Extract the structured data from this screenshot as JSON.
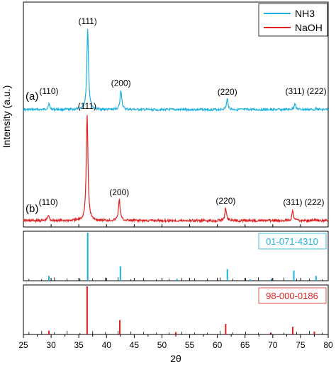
{
  "chart_data": {
    "type": "line",
    "xlabel": "2θ",
    "ylabel": "Intensity (a.u.)",
    "xlim": [
      25,
      80
    ],
    "x_ticks": [
      25,
      30,
      35,
      40,
      45,
      50,
      55,
      60,
      65,
      70,
      75,
      80
    ],
    "legend": {
      "placement": "top-right",
      "entries": [
        {
          "name": "NH3",
          "color": "#1ab0e0"
        },
        {
          "name": "NaOH",
          "color": "#e02020"
        }
      ]
    },
    "series": [
      {
        "name": "NH3",
        "label": "(a)",
        "color": "#1ab0e0",
        "baseline": 0.15,
        "peaks": [
          {
            "hkl": "(110)",
            "x": 29.6,
            "intensity": 0.07
          },
          {
            "hkl": "(111)",
            "x": 36.6,
            "intensity": 1.0
          },
          {
            "hkl": "(200)",
            "x": 42.6,
            "intensity": 0.24
          },
          {
            "hkl": "(220)",
            "x": 61.8,
            "intensity": 0.13
          },
          {
            "hkl": "(311)",
            "x": 74.0,
            "intensity": 0.08
          },
          {
            "hkl": "(222)",
            "x": 77.9,
            "intensity": 0.02
          }
        ]
      },
      {
        "name": "NaOH",
        "label": "(b)",
        "color": "#e02020",
        "baseline": 0.1,
        "peaks": [
          {
            "hkl": "(110)",
            "x": 29.5,
            "intensity": 0.05
          },
          {
            "hkl": "(111)",
            "x": 36.5,
            "intensity": 1.0
          },
          {
            "hkl": "(200)",
            "x": 42.3,
            "intensity": 0.2
          },
          {
            "hkl": "(220)",
            "x": 61.5,
            "intensity": 0.12
          },
          {
            "hkl": "(311)",
            "x": 73.6,
            "intensity": 0.09
          },
          {
            "hkl": "(222)",
            "x": 77.5,
            "intensity": 0.01
          }
        ]
      }
    ],
    "references": [
      {
        "card": "01-071-4310",
        "color": "#1ab0e0",
        "lines": [
          {
            "x": 29.6,
            "intensity": 0.1
          },
          {
            "x": 36.6,
            "intensity": 1.0
          },
          {
            "x": 42.5,
            "intensity": 0.3
          },
          {
            "x": 52.7,
            "intensity": 0.04
          },
          {
            "x": 61.8,
            "intensity": 0.24
          },
          {
            "x": 65.9,
            "intensity": 0.03
          },
          {
            "x": 69.9,
            "intensity": 0.05
          },
          {
            "x": 73.8,
            "intensity": 0.21
          },
          {
            "x": 77.8,
            "intensity": 0.1
          }
        ]
      },
      {
        "card": "98-000-0186",
        "color": "#e02020",
        "lines": [
          {
            "x": 29.6,
            "intensity": 0.08
          },
          {
            "x": 36.5,
            "intensity": 1.0
          },
          {
            "x": 42.4,
            "intensity": 0.3
          },
          {
            "x": 52.5,
            "intensity": 0.05
          },
          {
            "x": 61.5,
            "intensity": 0.22
          },
          {
            "x": 69.6,
            "intensity": 0.04
          },
          {
            "x": 73.6,
            "intensity": 0.16
          },
          {
            "x": 77.5,
            "intensity": 0.06
          }
        ]
      }
    ]
  }
}
